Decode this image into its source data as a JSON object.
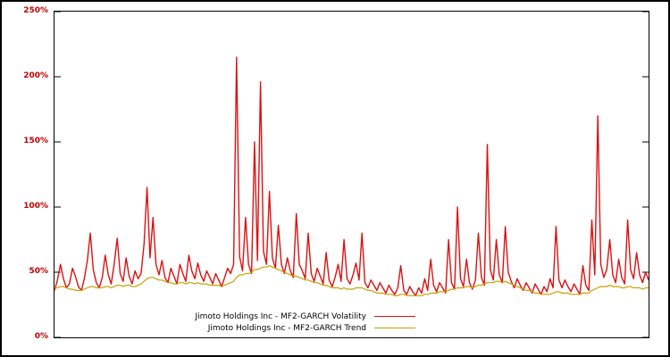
{
  "figure": {
    "background_color": "#ffffff",
    "frame_color": "#000000"
  },
  "chart_data": {
    "type": "line",
    "title": "",
    "xlabel": "",
    "ylabel": "",
    "grid": false,
    "legend_position": "bottom-left",
    "y_axis": {
      "ylim": [
        0,
        250
      ],
      "tick_values": [
        0,
        50,
        100,
        150,
        200,
        250
      ],
      "tick_labels": [
        "0%",
        "50%",
        "100%",
        "150%",
        "200%",
        "250%"
      ],
      "tick_label_color": "#c00000"
    },
    "x_axis": {
      "tick_labels": []
    },
    "series": [
      {
        "name": "Jimoto Holdings Inc - MF2-GARCH Volatility",
        "color": "#dd1111",
        "line_width": 1.4,
        "values": [
          36,
          44,
          56,
          45,
          38,
          41,
          53,
          47,
          39,
          36,
          45,
          59,
          80,
          52,
          42,
          38,
          46,
          63,
          48,
          41,
          56,
          76,
          49,
          43,
          61,
          47,
          41,
          51,
          45,
          49,
          72,
          115,
          61,
          92,
          56,
          48,
          59,
          46,
          42,
          53,
          47,
          41,
          56,
          49,
          43,
          63,
          51,
          45,
          57,
          48,
          43,
          51,
          46,
          41,
          49,
          44,
          39,
          46,
          53,
          49,
          56,
          215,
          62,
          51,
          92,
          56,
          49,
          150,
          59,
          196,
          66,
          56,
          112,
          61,
          53,
          86,
          56,
          49,
          61,
          51,
          46,
          95,
          56,
          51,
          45,
          80,
          49,
          43,
          53,
          47,
          41,
          65,
          44,
          39,
          46,
          56,
          43,
          75,
          45,
          41,
          48,
          57,
          44,
          80,
          42,
          38,
          44,
          40,
          36,
          42,
          38,
          34,
          40,
          36,
          33,
          38,
          55,
          36,
          33,
          39,
          35,
          32,
          38,
          34,
          45,
          36,
          60,
          40,
          35,
          42,
          38,
          34,
          75,
          42,
          37,
          100,
          45,
          39,
          60,
          42,
          37,
          44,
          80,
          46,
          40,
          148,
          52,
          44,
          75,
          48,
          42,
          85,
          50,
          43,
          38,
          45,
          40,
          36,
          42,
          38,
          34,
          41,
          37,
          33,
          39,
          35,
          45,
          38,
          85,
          44,
          38,
          44,
          39,
          35,
          41,
          37,
          33,
          55,
          40,
          36,
          90,
          48,
          170,
          56,
          46,
          52,
          75,
          48,
          42,
          60,
          46,
          41,
          90,
          52,
          45,
          65,
          48,
          42,
          50,
          44
        ]
      },
      {
        "name": "Jimoto Holdings Inc - MF2-GARCH Trend",
        "color": "#c8a000",
        "line_width": 1.2,
        "values": [
          38,
          38,
          39,
          39,
          38,
          37,
          37,
          36,
          36,
          36,
          37,
          38,
          39,
          39,
          38,
          38,
          38,
          39,
          39,
          38,
          39,
          40,
          40,
          39,
          40,
          40,
          39,
          39,
          40,
          41,
          43,
          45,
          46,
          46,
          45,
          44,
          44,
          43,
          42,
          42,
          41,
          41,
          42,
          42,
          41,
          42,
          42,
          41,
          42,
          41,
          41,
          41,
          40,
          40,
          40,
          40,
          39,
          40,
          41,
          42,
          43,
          46,
          48,
          48,
          49,
          49,
          50,
          52,
          52,
          53,
          54,
          54,
          55,
          54,
          53,
          52,
          51,
          50,
          49,
          48,
          47,
          47,
          46,
          45,
          44,
          44,
          43,
          42,
          42,
          41,
          40,
          40,
          39,
          38,
          38,
          38,
          37,
          38,
          37,
          37,
          37,
          38,
          38,
          38,
          37,
          36,
          36,
          35,
          34,
          34,
          34,
          33,
          33,
          33,
          32,
          32,
          33,
          33,
          32,
          32,
          32,
          32,
          32,
          32,
          33,
          33,
          34,
          34,
          34,
          35,
          35,
          35,
          36,
          37,
          37,
          38,
          38,
          38,
          39,
          39,
          38,
          39,
          40,
          40,
          41,
          42,
          42,
          42,
          43,
          43,
          42,
          43,
          42,
          41,
          40,
          39,
          38,
          37,
          36,
          36,
          35,
          34,
          34,
          33,
          33,
          33,
          33,
          34,
          35,
          35,
          34,
          34,
          34,
          33,
          33,
          33,
          33,
          34,
          34,
          34,
          36,
          37,
          38,
          39,
          39,
          39,
          40,
          39,
          39,
          39,
          38,
          38,
          39,
          39,
          38,
          38,
          38,
          37,
          38,
          38
        ]
      }
    ]
  },
  "legend": {
    "entries": [
      {
        "label": "Jimoto Holdings Inc - MF2-GARCH Volatility"
      },
      {
        "label": "Jimoto Holdings Inc - MF2-GARCH Trend"
      }
    ]
  }
}
